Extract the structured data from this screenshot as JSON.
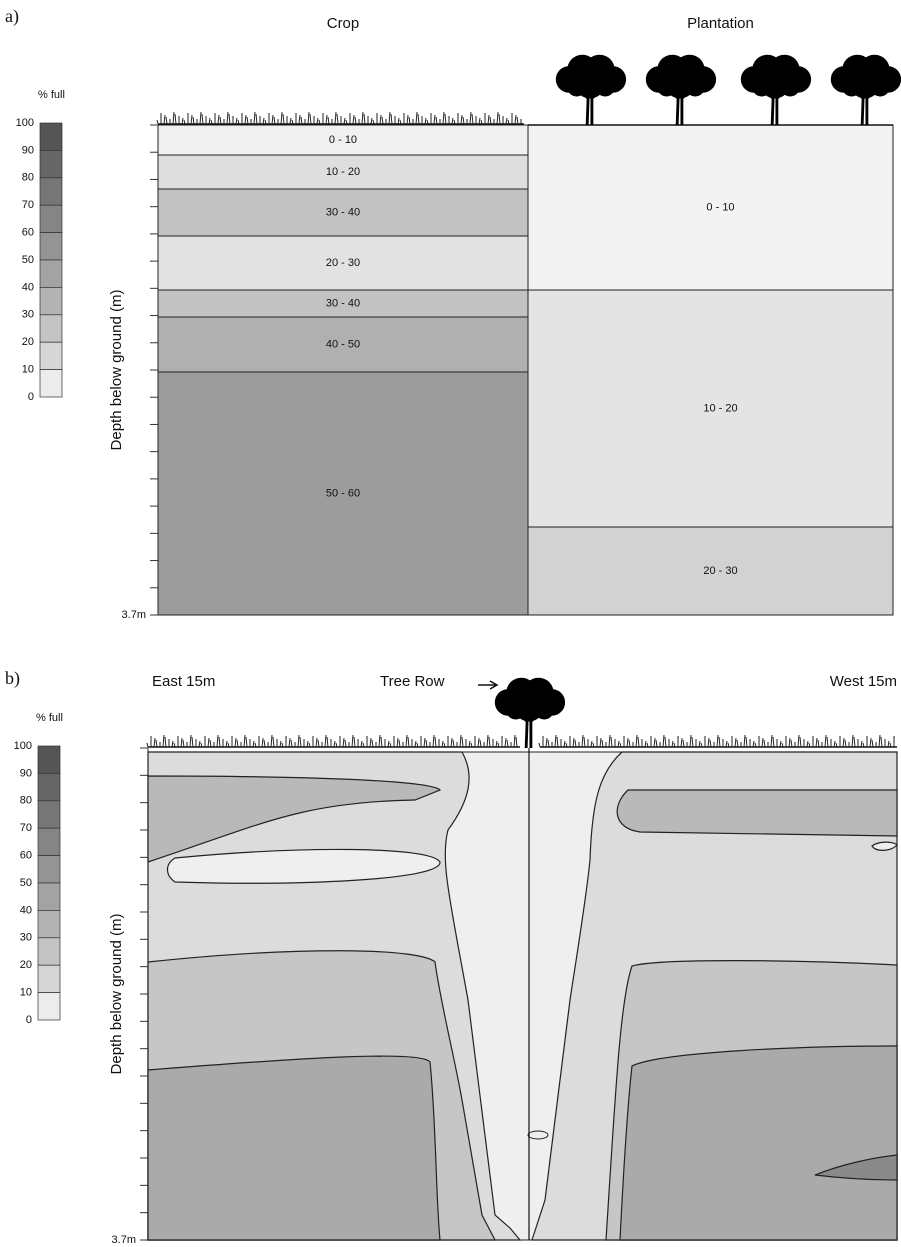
{
  "panels": [
    {
      "label": "a)",
      "legend": {
        "title": "% full",
        "levels": [
          100,
          90,
          80,
          70,
          60,
          50,
          40,
          30,
          20,
          10,
          0
        ]
      },
      "y_axis_label": "Depth below ground (m)",
      "depth_label": "3.7m",
      "columns": [
        {
          "title": "Crop",
          "layers": [
            "0 - 10",
            "10 - 20",
            "30 - 40",
            "20 - 30",
            "30 - 40",
            "40 - 50",
            "50 - 60"
          ]
        },
        {
          "title": "Plantation",
          "layers": [
            "0 - 10",
            "10 - 20",
            "20 - 30"
          ]
        }
      ]
    },
    {
      "label": "b)",
      "legend": {
        "title": "% full",
        "levels": [
          100,
          90,
          80,
          70,
          60,
          50,
          40,
          30,
          20,
          10,
          0
        ]
      },
      "y_axis_label": "Depth below ground (m)",
      "depth_label": "3.7m",
      "left_label": "East 15m",
      "center_label": "Tree Row",
      "right_label": "West 15m"
    }
  ]
}
